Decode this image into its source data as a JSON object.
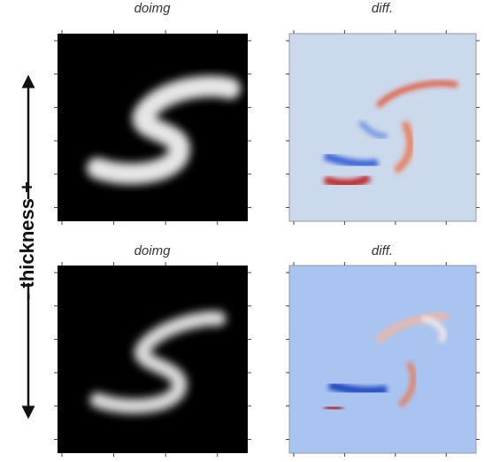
{
  "panels": [
    {
      "title": "doimg"
    },
    {
      "title": "diff."
    },
    {
      "title": "doimg"
    },
    {
      "title": "diff."
    }
  ],
  "side_label": "- thickness +"
}
